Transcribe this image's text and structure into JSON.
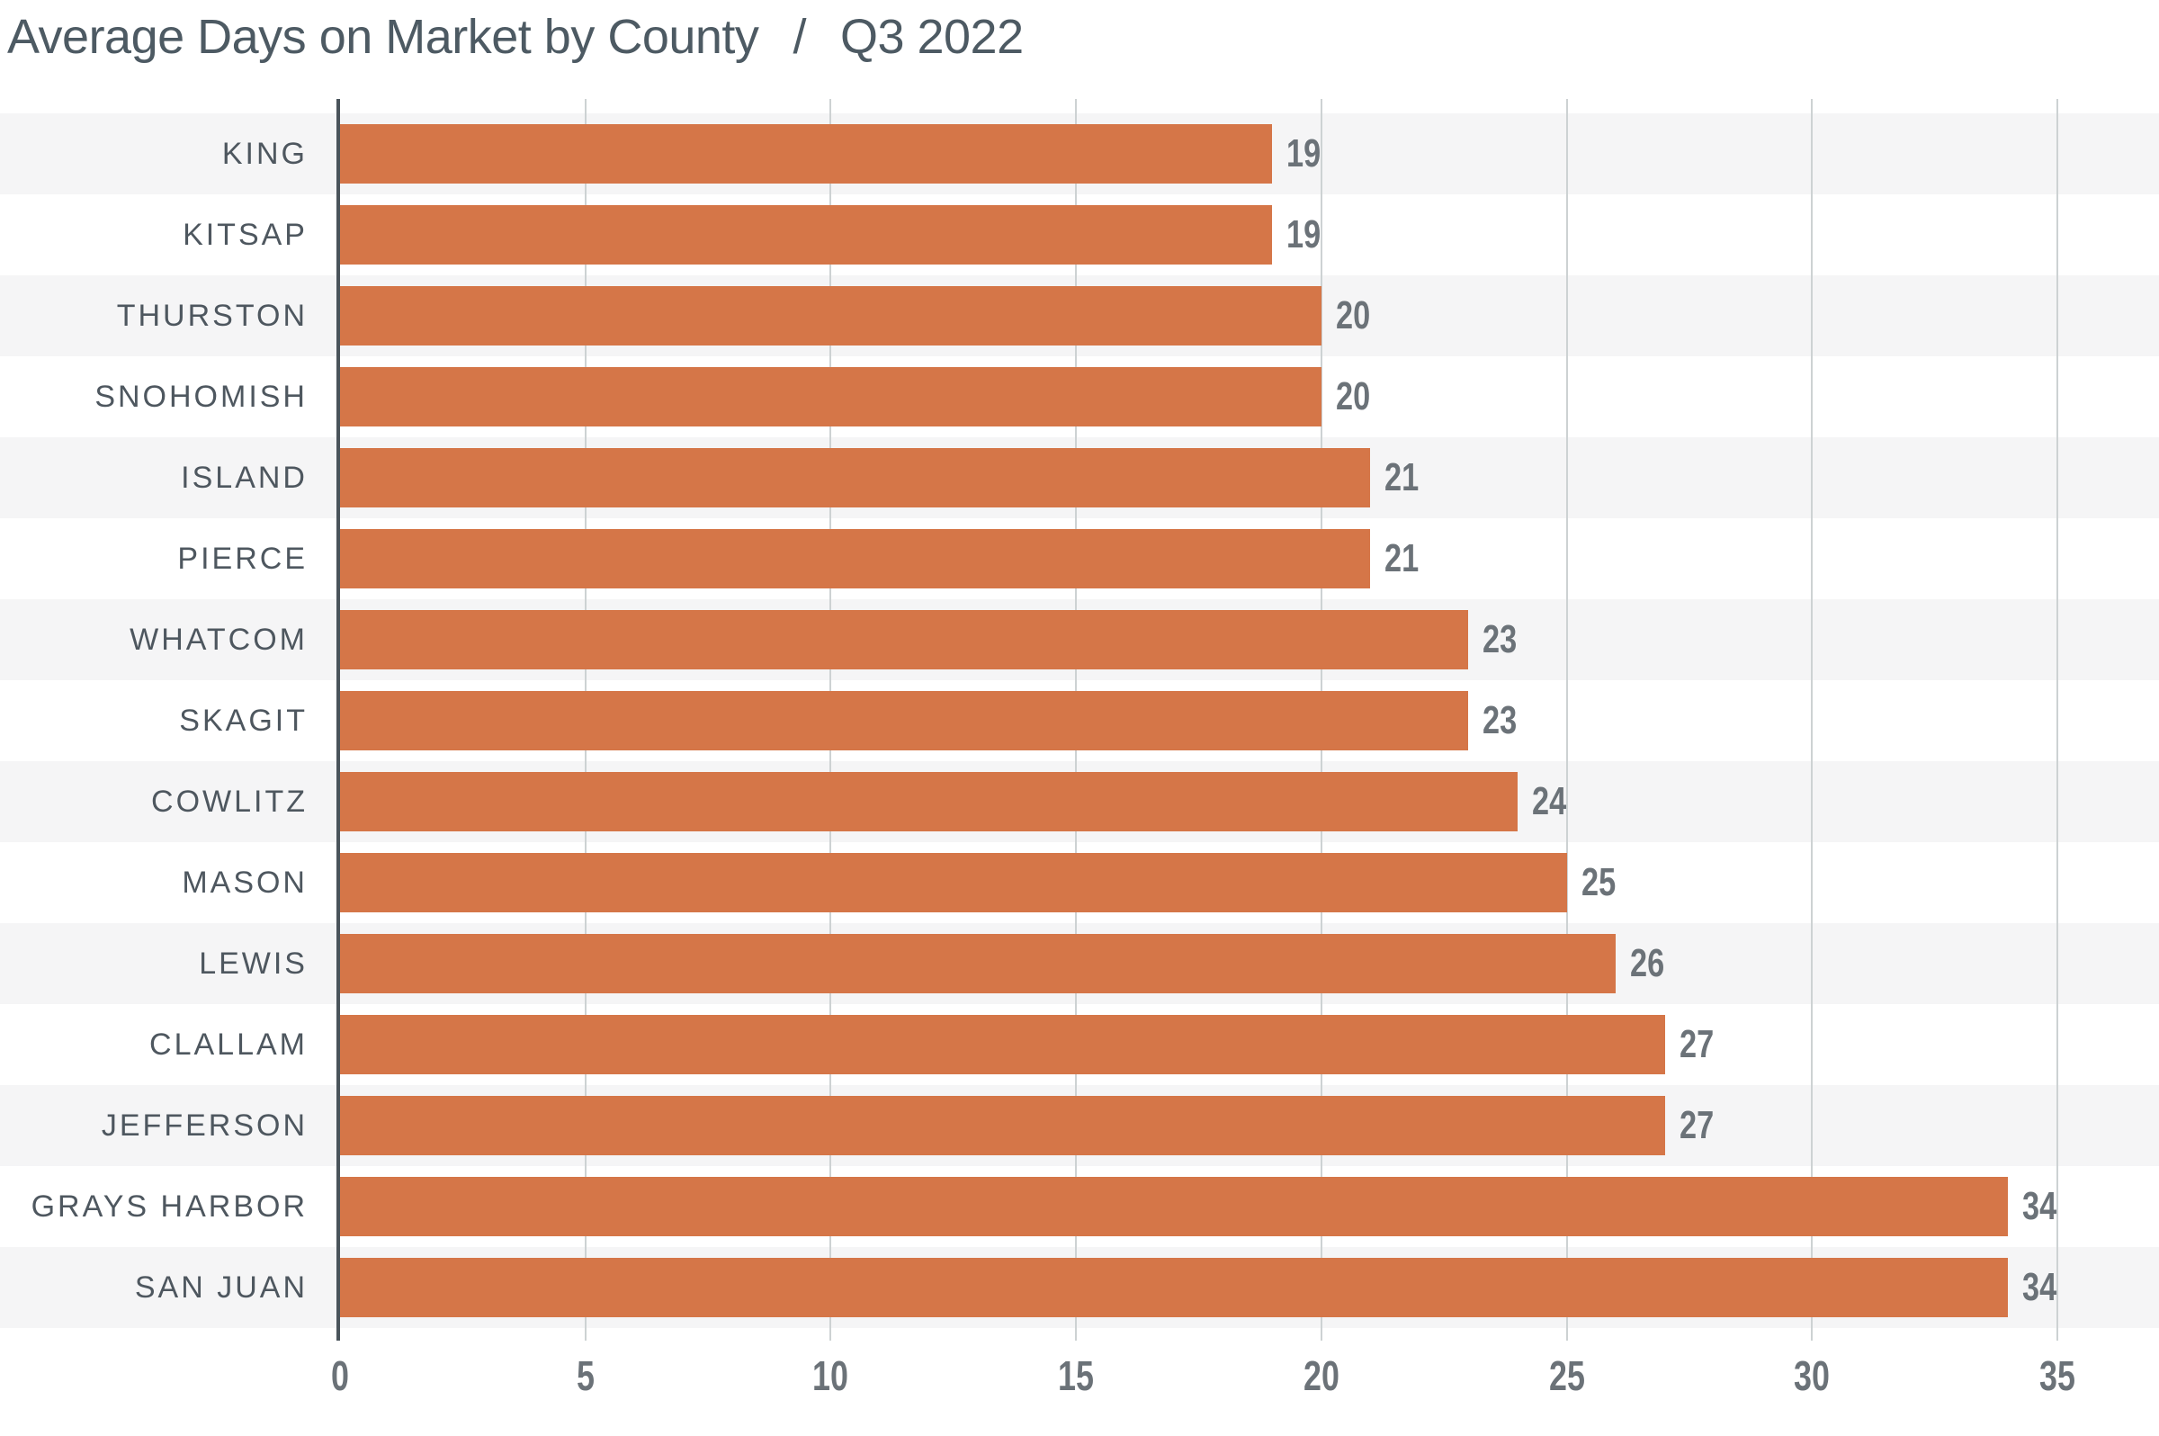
{
  "title": {
    "main": "Average Days on Market by County",
    "separator": "/",
    "period": "Q3 2022"
  },
  "chart_data": {
    "type": "bar",
    "orientation": "horizontal",
    "title": "Average Days on Market by County / Q3 2022",
    "categories": [
      "KING",
      "KITSAP",
      "THURSTON",
      "SNOHOMISH",
      "ISLAND",
      "PIERCE",
      "WHATCOM",
      "SKAGIT",
      "COWLITZ",
      "MASON",
      "LEWIS",
      "CLALLAM",
      "JEFFERSON",
      "GRAYS HARBOR",
      "SAN JUAN"
    ],
    "values": [
      19,
      19,
      20,
      20,
      21,
      21,
      23,
      23,
      24,
      25,
      26,
      27,
      27,
      34,
      34
    ],
    "xlabel": "",
    "ylabel": "",
    "xlim": [
      0,
      35
    ],
    "x_ticks": [
      0,
      5,
      10,
      15,
      20,
      25,
      30,
      35
    ],
    "grid": true,
    "legend": "none",
    "row_striping": true
  },
  "colors": {
    "bar": "#d57648",
    "stripe": "#f5f5f6",
    "gridline": "#cdd2d3",
    "axis_line": "#4a545b",
    "title_text": "#4d5a63",
    "category_text": "#4e575f",
    "value_text": "#6b7278"
  }
}
